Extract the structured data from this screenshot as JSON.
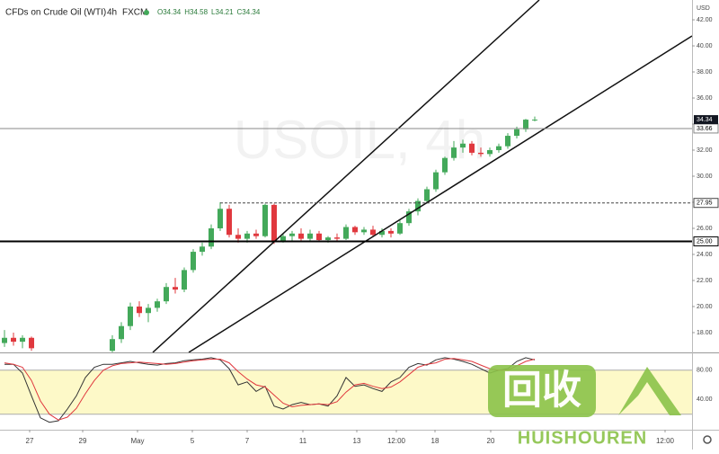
{
  "chart_data": {
    "type": "candlestick",
    "title": "CFDs on Crude Oil (WTI)",
    "interval": "4h",
    "source": "FXCM",
    "legend_ohlc": [
      "O34.34",
      "H34.58",
      "L34.21",
      "C34.34"
    ],
    "currency": "USD",
    "watermark": "USOIL, 4h",
    "up_color": "#43a95a",
    "down_color": "#e0383e",
    "x": [
      0,
      1,
      2,
      3,
      12,
      13,
      14,
      15,
      16,
      17,
      18,
      19,
      20,
      21,
      22,
      23,
      24,
      25,
      26,
      27,
      28,
      29,
      30,
      31,
      32,
      33,
      34,
      35,
      36,
      37,
      38,
      39,
      40,
      41,
      42,
      43,
      44,
      45,
      46,
      47,
      48,
      49,
      50,
      51,
      52,
      53,
      54,
      55,
      56,
      57,
      58,
      59
    ],
    "open": [
      17.2,
      17.6,
      17.3,
      17.6,
      16.6,
      17.5,
      18.5,
      20.0,
      19.5,
      19.9,
      20.4,
      21.5,
      21.3,
      22.8,
      24.2,
      24.6,
      26.0,
      27.5,
      25.5,
      25.2,
      25.6,
      25.4,
      27.8,
      25.0,
      25.4,
      25.6,
      25.2,
      25.6,
      25.1,
      25.3,
      25.2,
      26.1,
      25.7,
      25.9,
      25.5,
      25.8,
      25.6,
      26.4,
      27.3,
      28.1,
      29.0,
      30.3,
      31.4,
      32.2,
      32.5,
      31.8,
      31.7,
      32.0,
      32.3,
      33.1,
      33.6,
      34.34
    ],
    "high": [
      18.2,
      18.0,
      17.8,
      17.7,
      17.8,
      18.8,
      20.3,
      20.4,
      20.2,
      20.6,
      21.8,
      22.2,
      23.0,
      24.4,
      24.9,
      26.3,
      28.0,
      27.8,
      26.0,
      25.8,
      25.9,
      27.9,
      27.9,
      25.6,
      25.8,
      26.0,
      25.9,
      25.8,
      25.4,
      25.6,
      26.3,
      26.2,
      26.1,
      26.2,
      26.0,
      26.0,
      26.6,
      27.5,
      28.3,
      29.2,
      30.5,
      31.5,
      32.7,
      32.8,
      32.7,
      32.2,
      32.2,
      32.5,
      33.3,
      33.8,
      34.4,
      34.58
    ],
    "low": [
      16.9,
      17.0,
      16.8,
      16.6,
      16.5,
      17.2,
      18.2,
      19.2,
      18.8,
      19.6,
      20.2,
      21.0,
      21.1,
      22.6,
      23.9,
      24.4,
      25.8,
      25.3,
      24.9,
      24.9,
      25.2,
      25.3,
      24.8,
      24.9,
      25.0,
      25.0,
      25.0,
      25.0,
      24.9,
      25.0,
      25.1,
      25.5,
      25.5,
      25.4,
      25.3,
      25.3,
      25.5,
      26.2,
      27.0,
      27.9,
      28.8,
      30.1,
      31.2,
      31.8,
      31.6,
      31.5,
      31.5,
      31.8,
      32.1,
      32.9,
      33.4,
      34.21
    ],
    "close": [
      17.6,
      17.3,
      17.6,
      16.8,
      17.5,
      18.5,
      20.0,
      19.5,
      19.9,
      20.4,
      21.5,
      21.3,
      22.8,
      24.2,
      24.6,
      26.0,
      27.5,
      25.5,
      25.2,
      25.6,
      25.4,
      27.8,
      25.0,
      25.4,
      25.6,
      25.2,
      25.6,
      25.1,
      25.3,
      25.2,
      26.1,
      25.7,
      25.9,
      25.5,
      25.8,
      25.6,
      26.4,
      27.3,
      28.1,
      29.0,
      30.3,
      31.4,
      32.2,
      32.5,
      31.8,
      31.7,
      32.0,
      32.3,
      33.1,
      33.6,
      34.34,
      34.34
    ],
    "xlim": [
      -0.5,
      76.5
    ],
    "xticks": [
      {
        "value": 2.8,
        "label": "27"
      },
      {
        "value": 8.7,
        "label": "29"
      },
      {
        "value": 14.8,
        "label": "May"
      },
      {
        "value": 20.9,
        "label": "5"
      },
      {
        "value": 27,
        "label": "7"
      },
      {
        "value": 33.2,
        "label": "11"
      },
      {
        "value": 39.2,
        "label": "13"
      },
      {
        "value": 43.6,
        "label": "12:00"
      },
      {
        "value": 47.9,
        "label": "18"
      },
      {
        "value": 54.1,
        "label": "20"
      },
      {
        "value": 73.5,
        "label": "12:00"
      }
    ],
    "ylim": [
      16.48,
      43.52
    ],
    "yticks": [
      {
        "value": 18,
        "label": "18.00"
      },
      {
        "value": 20,
        "label": "20.00"
      },
      {
        "value": 22,
        "label": "22.00"
      },
      {
        "value": 24,
        "label": "24.00"
      },
      {
        "value": 26,
        "label": "26.00"
      },
      {
        "value": 28,
        "label": "28.00"
      },
      {
        "value": 30,
        "label": "30.00"
      },
      {
        "value": 32,
        "label": "32.00"
      },
      {
        "value": 34,
        "label": "34.00"
      },
      {
        "value": 36,
        "label": "36.00"
      },
      {
        "value": 38,
        "label": "38.00"
      },
      {
        "value": 40,
        "label": "40.00"
      },
      {
        "value": 42,
        "label": "42.00"
      }
    ],
    "last_price": {
      "value": 34.34,
      "label": "34.34"
    },
    "hlines": [
      {
        "value": 33.66,
        "label": "33.66",
        "color": "#888888",
        "width": 1,
        "dash": false
      },
      {
        "value": 27.95,
        "label": "27.95",
        "color": "#444444",
        "width": 1,
        "dash": true,
        "from": 24
      },
      {
        "value": 25,
        "label": "25.00",
        "color": "#000000",
        "width": 2,
        "dash": false
      }
    ],
    "trendlines": [
      [
        16.5,
        16.48,
        59.5,
        43.52
      ],
      [
        20.5,
        16.48,
        76.5,
        40.76
      ]
    ],
    "oscillator": {
      "ylim": [
        -1.2,
        103
      ],
      "yticks": [
        {
          "value": 80,
          "label": "80.00"
        },
        {
          "value": 40,
          "label": "40.00"
        }
      ],
      "band": [
        20,
        80
      ],
      "band_color": "#fdf9c8",
      "series": [
        {
          "color": "#333333",
          "values": [
            88,
            88,
            76,
            45,
            15,
            9,
            11,
            27,
            45,
            70,
            84,
            88,
            88,
            90,
            92,
            90,
            88,
            87,
            89,
            90,
            93,
            94,
            95,
            97,
            94,
            82,
            60,
            64,
            51,
            58,
            31,
            27,
            33,
            36,
            33,
            34,
            31,
            45,
            70,
            58,
            60,
            55,
            51,
            64,
            70,
            84,
            89,
            87,
            94,
            97,
            95,
            92,
            88,
            82,
            76,
            80,
            82,
            92,
            97,
            94
          ]
        },
        {
          "color": "#e0383e",
          "values": [
            90,
            88,
            84,
            66,
            38,
            20,
            12,
            16,
            28,
            48,
            66,
            80,
            86,
            89,
            90,
            91,
            90,
            89,
            88,
            89,
            91,
            93,
            94,
            95,
            95,
            90,
            78,
            68,
            60,
            57,
            46,
            35,
            30,
            32,
            33,
            34,
            33,
            37,
            50,
            60,
            62,
            58,
            55,
            57,
            64,
            74,
            84,
            88,
            90,
            95,
            96,
            94,
            92,
            87,
            82,
            80,
            80,
            86,
            92,
            95
          ]
        }
      ]
    },
    "logo_text": "回收",
    "logo_subtext": "HUISHOUREN",
    "logo_color": "#8bc34a"
  }
}
